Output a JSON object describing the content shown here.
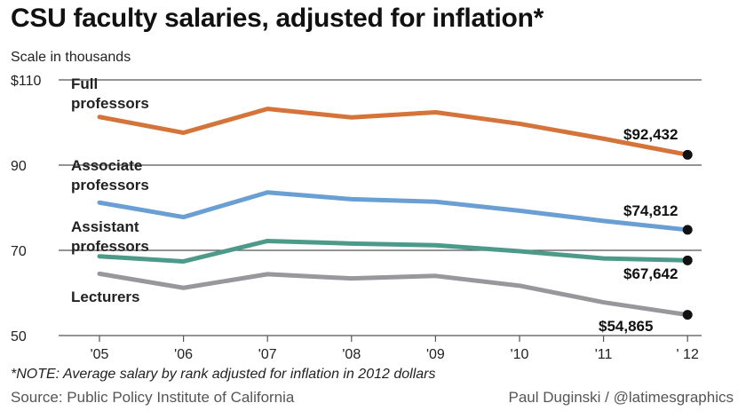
{
  "header": {
    "title": "CSU faculty salaries, adjusted for inflation*",
    "subtitle": "Scale in thousands"
  },
  "footer": {
    "note": "*NOTE: Average salary by rank adjusted for inflation in 2012 dollars",
    "source": "Source: Public Policy Institute of California",
    "credit": "Paul Duginski / @latimesgraphics"
  },
  "chart_data": {
    "type": "line",
    "x": [
      "'05",
      "'06",
      "'07",
      "'08",
      "'09",
      "'10",
      "'11",
      "' 12"
    ],
    "ylim": [
      50,
      110
    ],
    "yticks": [
      {
        "value": 110,
        "label": "$110"
      },
      {
        "value": 90,
        "label": "90"
      },
      {
        "value": 70,
        "label": "70"
      },
      {
        "value": 50,
        "label": "50"
      }
    ],
    "grid": true,
    "series": [
      {
        "name": "Full professors",
        "label_lines": [
          "Full",
          "professors"
        ],
        "color": "#d4743a",
        "values": [
          101.3,
          97.6,
          103.2,
          101.2,
          102.4,
          99.7,
          96.2,
          92.432
        ],
        "end_label": "$92,432"
      },
      {
        "name": "Associate professors",
        "label_lines": [
          "Associate",
          "professors"
        ],
        "color": "#6a9fd4",
        "values": [
          81.2,
          77.8,
          83.6,
          82.0,
          81.4,
          79.3,
          76.9,
          74.812
        ],
        "end_label": "$74,812"
      },
      {
        "name": "Assistant professors",
        "label_lines": [
          "Assistant",
          "professors"
        ],
        "color": "#4e9a8a",
        "values": [
          68.6,
          67.4,
          72.2,
          71.6,
          71.2,
          69.8,
          68.1,
          67.642
        ],
        "end_label": "$67,642"
      },
      {
        "name": "Lecturers",
        "label_lines": [
          "Lecturers"
        ],
        "color": "#97979c",
        "values": [
          64.5,
          61.2,
          64.4,
          63.4,
          64.0,
          61.7,
          57.8,
          54.865
        ],
        "end_label": "$54,865"
      }
    ]
  }
}
